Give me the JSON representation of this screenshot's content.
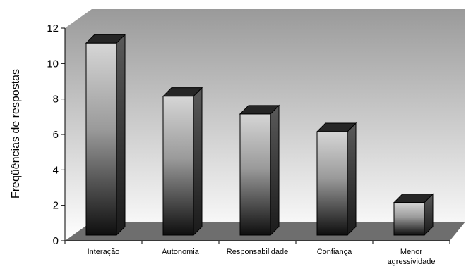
{
  "chart_data": {
    "type": "bar",
    "style": "3d-column",
    "categories": [
      "Interação",
      "Autonomia",
      "Responsabilidade",
      "Confiança",
      "Menor agressividade"
    ],
    "category_lines": [
      [
        "Interação"
      ],
      [
        "Autonomia"
      ],
      [
        "Responsabilidade"
      ],
      [
        "Confiança"
      ],
      [
        "Menor",
        "agressividade"
      ]
    ],
    "values": [
      11,
      8,
      7,
      6,
      2
    ],
    "title": "",
    "xlabel": "",
    "ylabel": "Freqüências de respostas",
    "ylim": [
      0,
      12
    ],
    "yticks": [
      0,
      2,
      4,
      6,
      8,
      10,
      12
    ],
    "grid": false,
    "legend": "none",
    "colors": {
      "wall_top": "#9a9a9a",
      "wall_bottom": "#ffffff",
      "floor": "#6e6e6e",
      "bar_top": "#262626",
      "bar_light": "#cfcfcf",
      "bar_dark": "#111111",
      "bar_side": "#4a4a4a"
    }
  }
}
